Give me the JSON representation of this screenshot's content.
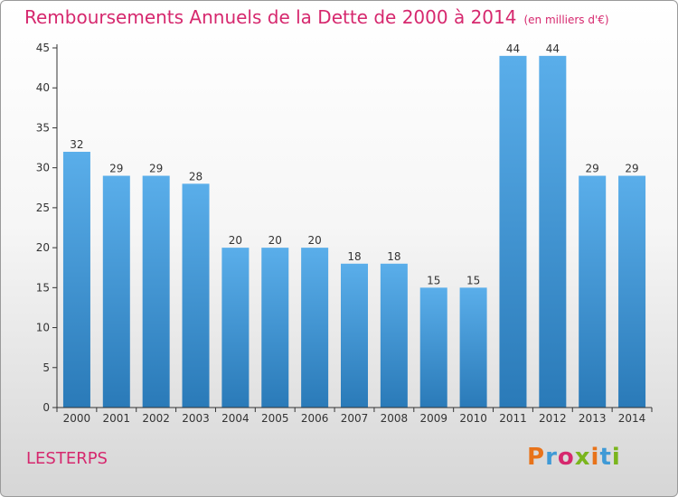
{
  "header": {
    "title": "Remboursements Annuels de la Dette de 2000 à 2014",
    "unit": "(en milliers d'€)"
  },
  "footer": {
    "commune": "LESTERPS",
    "brand": "Proxiti"
  },
  "colors": {
    "title": "#d6286e",
    "bar_light": "#5aaeea",
    "bar_dark": "#2a7ab8",
    "axis": "#333333",
    "brand_letters": [
      "#e8731a",
      "#3f9ad6",
      "#d6286e",
      "#7ab51d",
      "#e8731a",
      "#3f9ad6",
      "#7ab51d"
    ]
  },
  "chart_data": {
    "type": "bar",
    "title": "Remboursements Annuels de la Dette de 2000 à 2014",
    "subtitle": "(en milliers d'€)",
    "xlabel": "",
    "ylabel": "",
    "categories": [
      "2000",
      "2001",
      "2002",
      "2003",
      "2004",
      "2005",
      "2006",
      "2007",
      "2008",
      "2009",
      "2010",
      "2011",
      "2012",
      "2013",
      "2014"
    ],
    "values": [
      32,
      29,
      29,
      28,
      20,
      20,
      20,
      18,
      18,
      15,
      15,
      44,
      44,
      29,
      29
    ],
    "ylim": [
      0,
      45
    ],
    "yticks": [
      0,
      5,
      10,
      15,
      20,
      25,
      30,
      35,
      40,
      45
    ],
    "grid": false,
    "data_labels": true
  }
}
